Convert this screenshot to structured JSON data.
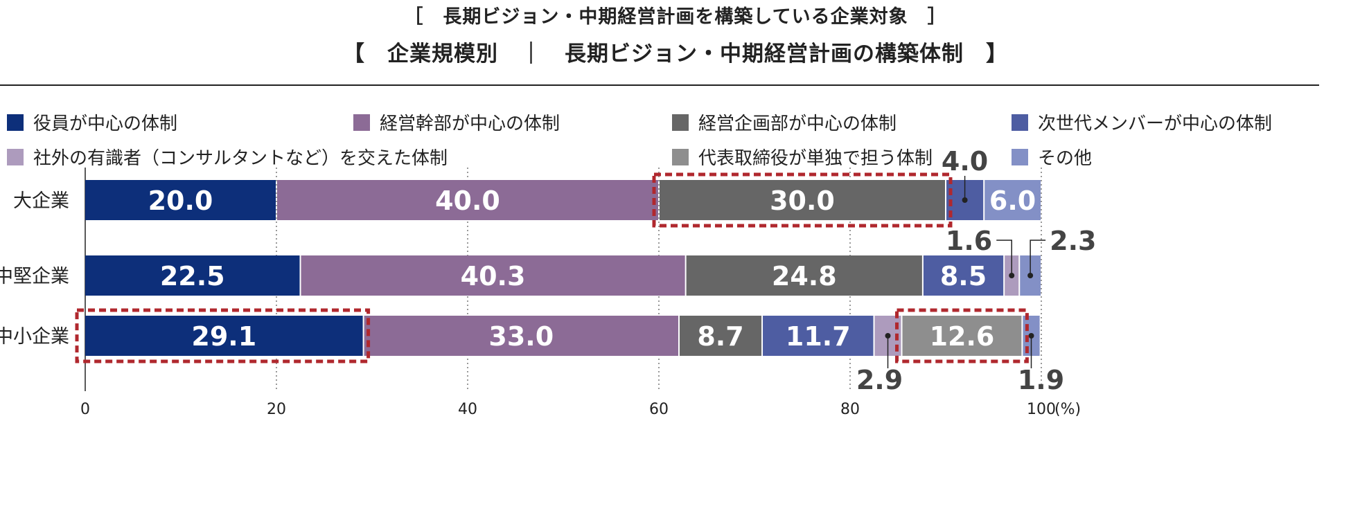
{
  "titles": {
    "line1": "［　長期ビジョン・中期経営計画を構築している企業対象　］",
    "line2": "【　企業規模別　｜　長期ビジョン・中期経営計画の構築体制　】"
  },
  "chart_data": {
    "type": "bar",
    "orientation": "horizontal",
    "stacked": true,
    "categories": [
      "大企業",
      "中堅企業",
      "中小企業"
    ],
    "series": [
      {
        "name": "役員が中心の体制",
        "color": "#0d2f7a",
        "values": [
          20.0,
          22.5,
          29.1
        ]
      },
      {
        "name": "経営幹部が中心の体制",
        "color": "#8c6b96",
        "values": [
          40.0,
          40.3,
          33.0
        ]
      },
      {
        "name": "経営企画部が中心の体制",
        "color": "#666666",
        "values": [
          30.0,
          24.8,
          8.7
        ]
      },
      {
        "name": "次世代メンバーが中心の体制",
        "color": "#4e5da2",
        "values": [
          4.0,
          8.5,
          11.7
        ]
      },
      {
        "name": "社外の有識者（コンサルタントなど）を交えた体制",
        "color": "#ad9bbd",
        "values": [
          0,
          1.6,
          2.9
        ]
      },
      {
        "name": "代表取締役が単独で担う体制",
        "color": "#8e8e8e",
        "values": [
          0,
          0,
          12.6
        ]
      },
      {
        "name": "その他",
        "color": "#8390c6",
        "values": [
          6.0,
          2.3,
          1.9
        ]
      }
    ],
    "data_labels": [
      [
        "20.0",
        "40.0",
        "30.0",
        "4.0",
        "",
        "",
        "6.0"
      ],
      [
        "22.5",
        "40.3",
        "24.8",
        "8.5",
        "1.6",
        "",
        "2.3"
      ],
      [
        "29.1",
        "33.0",
        "8.7",
        "11.7",
        "2.9",
        "12.6",
        "1.9"
      ]
    ],
    "xlim": [
      0,
      100
    ],
    "xticks": [
      "0",
      "20",
      "40",
      "60",
      "80",
      "100"
    ],
    "x_unit": "(%)",
    "grid": "vertical dotted",
    "highlight_color": "#b0282e",
    "highlights": [
      {
        "category": "大企業",
        "series": "経営企画部が中心の体制"
      },
      {
        "category": "中小企業",
        "series": "役員が中心の体制"
      },
      {
        "category": "中小企業",
        "series": "代表取締役が単独で担う体制"
      }
    ],
    "xlabel": "",
    "ylabel": "",
    "title": ""
  }
}
